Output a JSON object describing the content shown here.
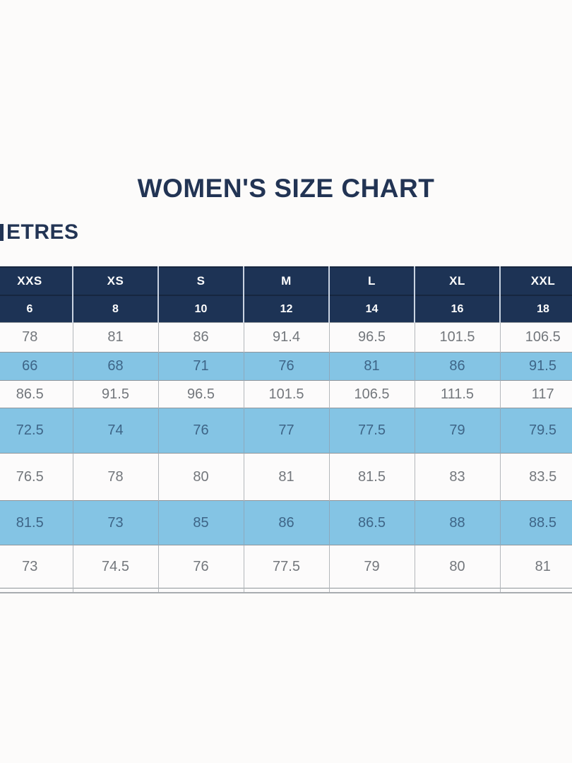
{
  "title": "WOMEN'S SIZE CHART",
  "unit_label_fragment": "ETRES",
  "chart_data": {
    "type": "table",
    "title": "WOMEN'S SIZE CHART",
    "size_labels": [
      "XXS",
      "XS",
      "S",
      "M",
      "L",
      "XL",
      "XXL"
    ],
    "numeric_sizes": [
      "6",
      "8",
      "10",
      "12",
      "14",
      "16",
      "18"
    ],
    "measurement_rows": [
      {
        "highlighted": false,
        "values": [
          "78",
          "81",
          "86",
          "91.4",
          "96.5",
          "101.5",
          "106.5"
        ]
      },
      {
        "highlighted": true,
        "values": [
          "66",
          "68",
          "71",
          "76",
          "81",
          "86",
          "91.5"
        ]
      },
      {
        "highlighted": false,
        "values": [
          "86.5",
          "91.5",
          "96.5",
          "101.5",
          "106.5",
          "111.5",
          "117"
        ]
      },
      {
        "highlighted": true,
        "values": [
          "72.5",
          "74",
          "76",
          "77",
          "77.5",
          "79",
          "79.5"
        ]
      },
      {
        "highlighted": false,
        "values": [
          "76.5",
          "78",
          "80",
          "81",
          "81.5",
          "83",
          "83.5"
        ]
      },
      {
        "highlighted": true,
        "values": [
          "81.5",
          "73",
          "85",
          "86",
          "86.5",
          "88",
          "88.5"
        ]
      },
      {
        "highlighted": false,
        "values": [
          "73",
          "74.5",
          "76",
          "77.5",
          "79",
          "80",
          "81"
        ]
      }
    ]
  },
  "colors": {
    "header_navy": "#1d3355",
    "title_navy": "#223454",
    "highlight_blue": "#84c4e4",
    "body_text_gray": "#73777c",
    "highlight_text_navy": "#3e6587",
    "page_background": "#fcfbfa"
  }
}
